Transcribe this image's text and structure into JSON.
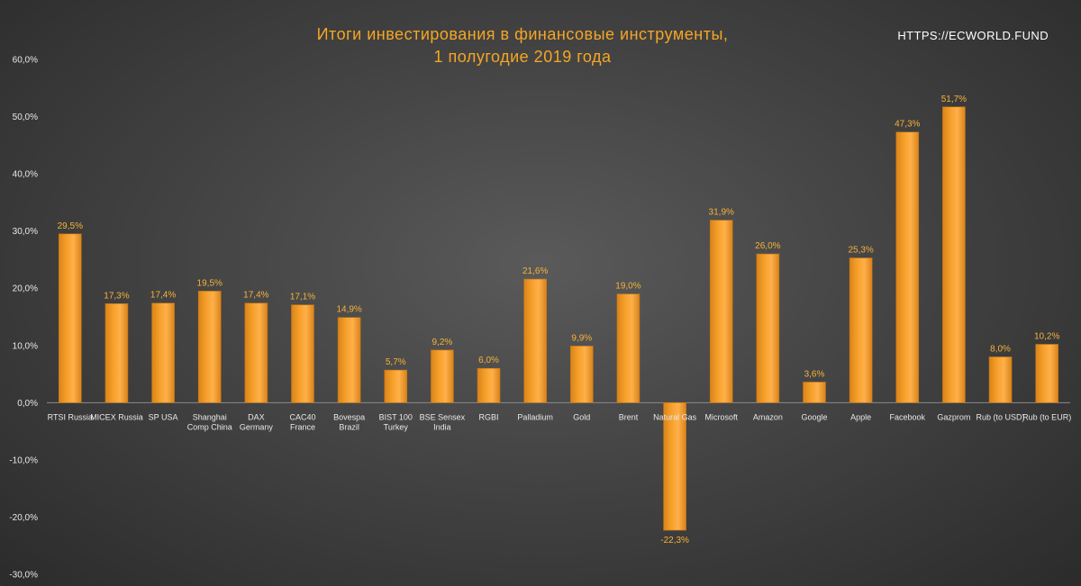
{
  "header": {
    "title_line1": "Итоги инвестирования  в финансовые  инструменты,",
    "title_line2": "1 полугодие  2019 года",
    "watermark": "HTTPS://ECWORLD.FUND"
  },
  "colors": {
    "bar": "#f6a02a",
    "bar_dark": "#d9831a",
    "label": "#f6b23a",
    "text": "#e8e8e8"
  },
  "chart_data": {
    "type": "bar",
    "title": "Итоги инвестирования  в финансовые  инструменты, 1 полугодие  2019 года",
    "categories": [
      [
        "RTSI Russia"
      ],
      [
        "MICEX Russia"
      ],
      [
        "SP USA"
      ],
      [
        "Shanghai",
        "Comp China"
      ],
      [
        "DAX",
        "Germany"
      ],
      [
        "CAC40",
        "France"
      ],
      [
        "Bovespa",
        "Brazil"
      ],
      [
        "BIST 100",
        "Turkey"
      ],
      [
        "BSE Sensex",
        "India"
      ],
      [
        "RGBI"
      ],
      [
        "Palladium"
      ],
      [
        "Gold"
      ],
      [
        "Brent"
      ],
      [
        "Natural Gas"
      ],
      [
        "Microsoft"
      ],
      [
        "Amazon"
      ],
      [
        "Google"
      ],
      [
        "Apple"
      ],
      [
        "Facebook"
      ],
      [
        "Gazprom"
      ],
      [
        "Rub (to USD)"
      ],
      [
        "Rub (to EUR)"
      ]
    ],
    "values": [
      29.5,
      17.3,
      17.4,
      19.5,
      17.4,
      17.1,
      14.9,
      5.7,
      9.2,
      6.0,
      21.6,
      9.9,
      19.0,
      -22.3,
      31.9,
      26.0,
      3.6,
      25.3,
      47.3,
      51.7,
      8.0,
      10.2
    ],
    "value_labels": [
      "29,5%",
      "17,3%",
      "17,4%",
      "19,5%",
      "17,4%",
      "17,1%",
      "14,9%",
      "5,7%",
      "9,2%",
      "6,0%",
      "21,6%",
      "9,9%",
      "19,0%",
      "-22,3%",
      "31,9%",
      "26,0%",
      "3,6%",
      "25,3%",
      "47,3%",
      "51,7%",
      "8,0%",
      "10,2%"
    ],
    "yticks": [
      "60,0%",
      "50,0%",
      "40,0%",
      "30,0%",
      "20,0%",
      "10,0%",
      "0,0%",
      "-10,0%",
      "-20,0%",
      "-30,0%"
    ],
    "ylim": [
      -30,
      60
    ],
    "grid": false,
    "legend": "none"
  }
}
